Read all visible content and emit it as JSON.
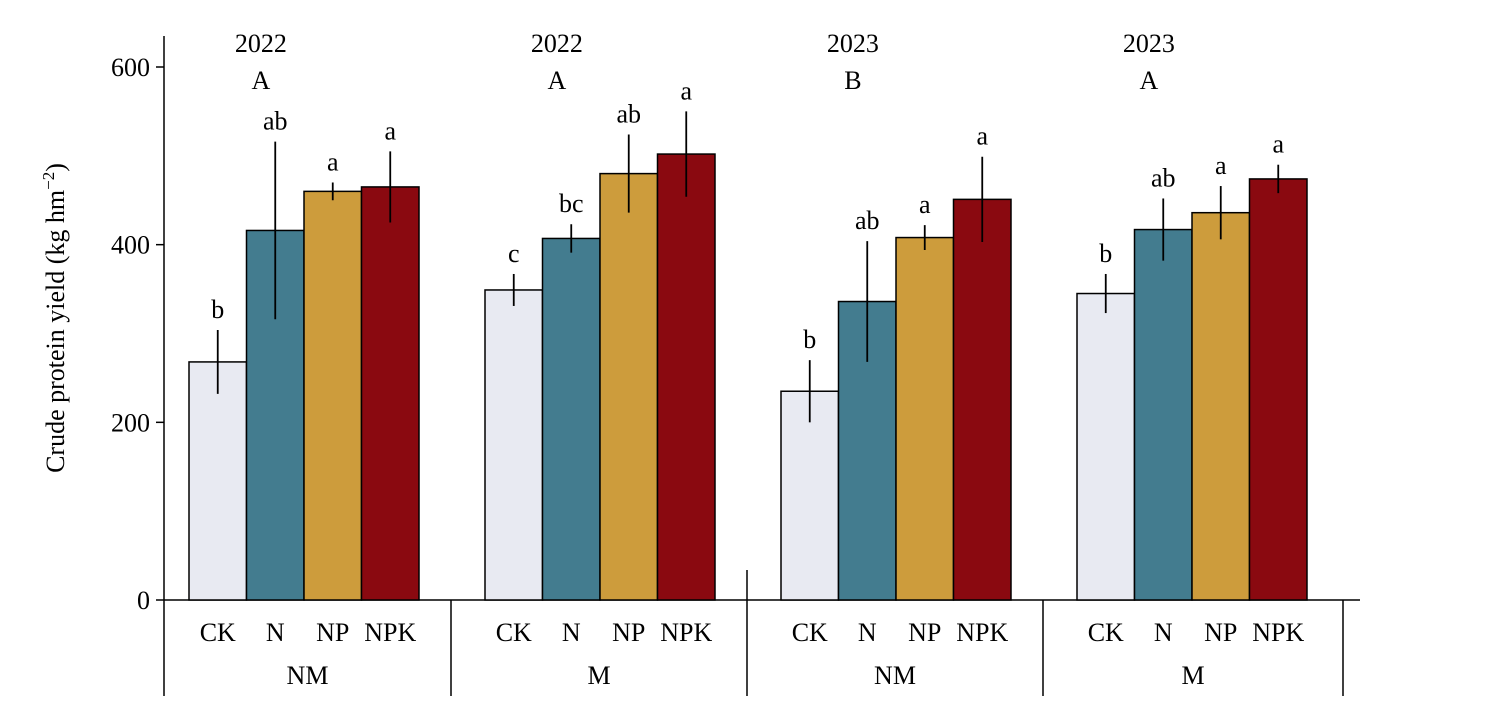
{
  "chart_data": {
    "type": "bar",
    "ylabel": "Crude protein yield (kg hm",
    "ylabel_sup": "−2",
    "ylabel_close": ")",
    "ylim": [
      0,
      600
    ],
    "yticks": [
      0,
      200,
      400,
      600
    ],
    "grid": false,
    "categories": [
      "CK",
      "N",
      "NP",
      "NPK"
    ],
    "colors": {
      "CK": "#e8eaf2",
      "N": "#437c8f",
      "NP": "#cd9c3c",
      "NPK": "#8a0910"
    },
    "groups": [
      {
        "label": "NM",
        "year": "2022",
        "letter": "A",
        "values": [
          268,
          416,
          460,
          465
        ],
        "errors": [
          36,
          100,
          10,
          40
        ],
        "sig": [
          "b",
          "ab",
          "a",
          "a"
        ]
      },
      {
        "label": "M",
        "year": "2022",
        "letter": "A",
        "values": [
          349,
          407,
          480,
          502
        ],
        "errors": [
          18,
          16,
          44,
          48
        ],
        "sig": [
          "c",
          "bc",
          "ab",
          "a"
        ]
      },
      {
        "label": "NM",
        "year": "2023",
        "letter": "B",
        "values": [
          235,
          336,
          408,
          451
        ],
        "errors": [
          35,
          68,
          14,
          48
        ],
        "sig": [
          "b",
          "ab",
          "a",
          "a"
        ]
      },
      {
        "label": "M",
        "year": "2023",
        "letter": "A",
        "values": [
          345,
          417,
          436,
          474
        ],
        "errors": [
          22,
          35,
          30,
          16
        ],
        "sig": [
          "b",
          "ab",
          "a",
          "a"
        ]
      }
    ]
  }
}
